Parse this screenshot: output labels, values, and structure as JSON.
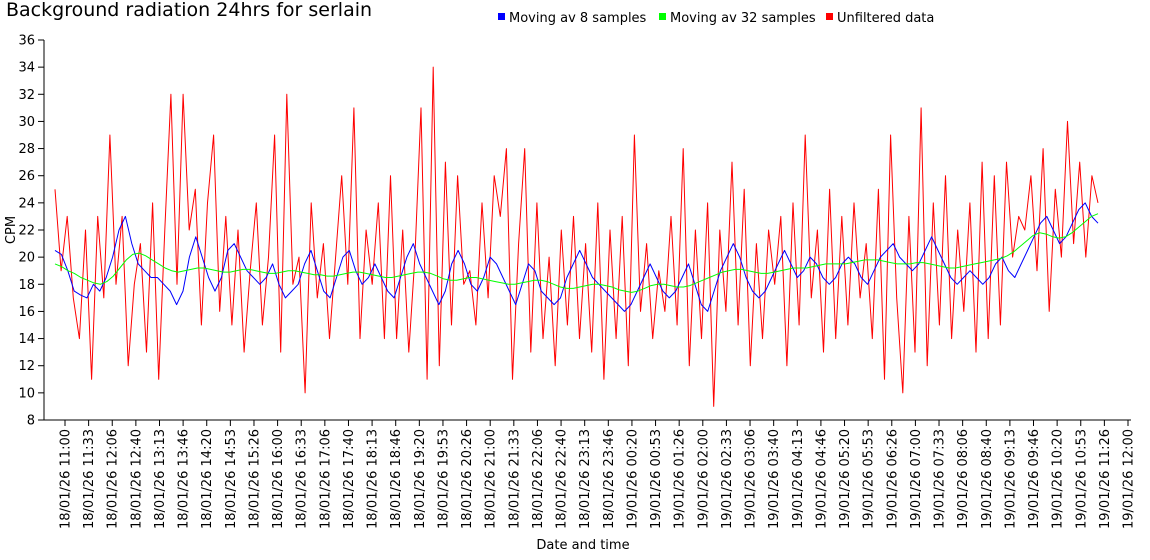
{
  "chart_data": {
    "type": "line",
    "title": "Background radiation 24hrs for serlain",
    "xlabel": "Date and time",
    "ylabel": "CPM",
    "ylim": [
      8,
      36
    ],
    "yticks": [
      8,
      10,
      12,
      14,
      16,
      18,
      20,
      22,
      24,
      26,
      28,
      30,
      32,
      34,
      36
    ],
    "xticks": [
      "18/01/26 11:00",
      "18/01/26 11:33",
      "18/01/26 12:06",
      "18/01/26 12:40",
      "18/01/26 13:13",
      "18/01/26 13:46",
      "18/01/26 14:20",
      "18/01/26 14:53",
      "18/01/26 15:26",
      "18/01/26 16:00",
      "18/01/26 16:33",
      "18/01/26 17:06",
      "18/01/26 17:40",
      "18/01/26 18:13",
      "18/01/26 18:46",
      "18/01/26 19:20",
      "18/01/26 19:53",
      "18/01/26 20:26",
      "18/01/26 21:00",
      "18/01/26 21:33",
      "18/01/26 22:06",
      "18/01/26 22:40",
      "18/01/26 23:13",
      "18/01/26 23:46",
      "19/01/26 00:20",
      "19/01/26 00:53",
      "19/01/26 01:26",
      "19/01/26 02:00",
      "19/01/26 02:33",
      "19/01/26 03:06",
      "19/01/26 03:40",
      "19/01/26 04:13",
      "19/01/26 04:46",
      "19/01/26 05:20",
      "19/01/26 05:53",
      "19/01/26 06:26",
      "19/01/26 07:00",
      "19/01/26 07:33",
      "19/01/26 08:06",
      "19/01/26 08:40",
      "19/01/26 09:13",
      "19/01/26 09:46",
      "19/01/26 10:20",
      "19/01/26 10:53",
      "19/01/26 11:26",
      "19/01/26 12:00"
    ],
    "legend_position": "top",
    "grid": false,
    "series": [
      {
        "name": "Moving av 8 samples",
        "color": "#0000ff",
        "values": [
          20.5,
          20.2,
          19.0,
          17.5,
          17.2,
          17.0,
          18.0,
          17.5,
          18.5,
          20.0,
          22.0,
          23.0,
          21.0,
          19.5,
          19.0,
          18.5,
          18.5,
          18.0,
          17.5,
          16.5,
          17.5,
          20.0,
          21.5,
          20.0,
          18.5,
          17.5,
          18.5,
          20.5,
          21.0,
          20.0,
          19.0,
          18.5,
          18.0,
          18.5,
          19.5,
          18.0,
          17.0,
          17.5,
          18.0,
          19.5,
          20.5,
          19.0,
          17.5,
          17.0,
          18.5,
          20.0,
          20.5,
          19.0,
          18.0,
          18.5,
          19.5,
          18.5,
          17.5,
          17.0,
          18.5,
          20.0,
          21.0,
          19.5,
          18.5,
          17.5,
          16.5,
          17.5,
          19.5,
          20.5,
          19.5,
          18.0,
          17.5,
          18.5,
          20.0,
          19.5,
          18.5,
          17.5,
          16.5,
          18.0,
          19.5,
          19.0,
          17.5,
          17.0,
          16.5,
          17.0,
          18.5,
          19.5,
          20.5,
          19.5,
          18.5,
          18.0,
          17.5,
          17.0,
          16.5,
          16.0,
          16.5,
          17.5,
          18.5,
          19.5,
          18.5,
          17.5,
          17.0,
          17.5,
          18.5,
          19.5,
          18.0,
          16.5,
          16.0,
          17.5,
          19.0,
          20.0,
          21.0,
          20.0,
          18.5,
          17.5,
          17.0,
          17.5,
          18.5,
          19.5,
          20.5,
          19.5,
          18.5,
          19.0,
          20.0,
          19.5,
          18.5,
          18.0,
          18.5,
          19.5,
          20.0,
          19.5,
          18.5,
          18.0,
          19.0,
          20.0,
          20.5,
          21.0,
          20.0,
          19.5,
          19.0,
          19.5,
          20.5,
          21.5,
          20.5,
          19.5,
          18.5,
          18.0,
          18.5,
          19.0,
          18.5,
          18.0,
          18.5,
          19.5,
          20.0,
          19.0,
          18.5,
          19.5,
          20.5,
          21.5,
          22.5,
          23.0,
          22.0,
          21.0,
          21.5,
          22.5,
          23.5,
          24.0,
          23.0,
          22.5
        ]
      },
      {
        "name": "Moving av 32 samples",
        "color": "#00ff00",
        "values": [
          19.5,
          19.3,
          19.0,
          18.8,
          18.5,
          18.3,
          18.1,
          18.0,
          18.2,
          18.6,
          19.2,
          19.8,
          20.2,
          20.3,
          20.1,
          19.8,
          19.5,
          19.2,
          19.0,
          18.9,
          19.0,
          19.1,
          19.2,
          19.2,
          19.1,
          19.0,
          18.9,
          18.9,
          19.0,
          19.1,
          19.1,
          19.0,
          18.9,
          18.8,
          18.8,
          18.9,
          19.0,
          19.0,
          18.9,
          18.8,
          18.7,
          18.7,
          18.6,
          18.6,
          18.7,
          18.8,
          18.9,
          18.9,
          18.8,
          18.7,
          18.6,
          18.5,
          18.5,
          18.6,
          18.7,
          18.8,
          18.9,
          18.9,
          18.8,
          18.6,
          18.4,
          18.3,
          18.3,
          18.4,
          18.5,
          18.5,
          18.4,
          18.3,
          18.2,
          18.1,
          18.0,
          18.0,
          18.1,
          18.2,
          18.3,
          18.3,
          18.2,
          18.0,
          17.8,
          17.7,
          17.7,
          17.8,
          17.9,
          18.0,
          18.0,
          17.9,
          17.8,
          17.6,
          17.5,
          17.4,
          17.5,
          17.7,
          17.9,
          18.0,
          18.0,
          17.9,
          17.8,
          17.8,
          17.9,
          18.1,
          18.3,
          18.5,
          18.7,
          18.9,
          19.0,
          19.1,
          19.1,
          19.0,
          18.9,
          18.8,
          18.8,
          18.9,
          19.0,
          19.1,
          19.2,
          19.2,
          19.2,
          19.3,
          19.4,
          19.5,
          19.5,
          19.5,
          19.5,
          19.6,
          19.7,
          19.8,
          19.8,
          19.8,
          19.7,
          19.6,
          19.5,
          19.5,
          19.5,
          19.6,
          19.6,
          19.5,
          19.4,
          19.3,
          19.2,
          19.2,
          19.3,
          19.4,
          19.5,
          19.6,
          19.7,
          19.8,
          19.9,
          20.1,
          20.4,
          20.8,
          21.2,
          21.6,
          21.8,
          21.7,
          21.5,
          21.4,
          21.5,
          21.8,
          22.2,
          22.6,
          23.0,
          23.2
        ]
      },
      {
        "name": "Unfiltered data",
        "color": "#ff0000",
        "values": [
          25,
          19,
          23,
          17,
          14,
          22,
          11,
          23,
          17,
          29,
          18,
          23,
          12,
          18,
          21,
          13,
          24,
          11,
          22,
          32,
          18,
          32,
          22,
          25,
          15,
          24,
          29,
          16,
          23,
          15,
          22,
          13,
          19,
          24,
          15,
          20,
          29,
          13,
          32,
          18,
          20,
          10,
          24,
          17,
          21,
          14,
          20,
          26,
          18,
          31,
          14,
          22,
          18,
          24,
          14,
          26,
          14,
          22,
          13,
          20,
          31,
          11,
          34,
          12,
          27,
          15,
          26,
          18,
          19,
          15,
          24,
          17,
          26,
          23,
          28,
          11,
          21,
          28,
          13,
          24,
          14,
          20,
          12,
          22,
          15,
          23,
          14,
          21,
          13,
          24,
          11,
          22,
          14,
          23,
          12,
          29,
          16,
          21,
          14,
          19,
          16,
          23,
          15,
          28,
          12,
          22,
          14,
          24,
          9,
          22,
          16,
          27,
          15,
          25,
          12,
          21,
          14,
          22,
          18,
          23,
          12,
          24,
          15,
          29,
          17,
          22,
          13,
          25,
          14,
          23,
          15,
          24,
          17,
          21,
          14,
          25,
          11,
          29,
          17,
          10,
          23,
          13,
          31,
          12,
          24,
          15,
          26,
          14,
          22,
          16,
          24,
          13,
          27,
          14,
          26,
          15,
          27,
          20,
          23,
          22,
          26,
          19,
          28,
          16,
          25,
          20,
          30,
          21,
          27,
          20,
          26,
          24
        ]
      }
    ]
  }
}
